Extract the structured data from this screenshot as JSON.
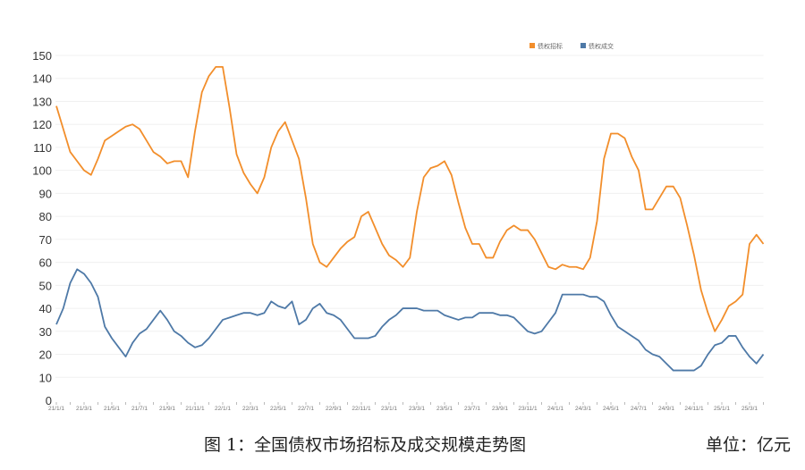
{
  "caption": {
    "title": "图 1：全国债权市场招标及成交规模走势图",
    "unit": "单位：亿元"
  },
  "chart_data": {
    "type": "line",
    "title": "",
    "xlabel": "",
    "ylabel": "",
    "ylim": [
      0,
      150
    ],
    "yticks": [
      0,
      10,
      20,
      30,
      40,
      50,
      60,
      70,
      80,
      90,
      100,
      110,
      120,
      130,
      140,
      150
    ],
    "xtick_labels": [
      "21/1/1",
      "21/3/1",
      "21/5/1",
      "21/7/1",
      "21/9/1",
      "21/11/1",
      "22/1/1",
      "22/3/1",
      "22/5/1",
      "22/7/1",
      "22/9/1",
      "22/11/1",
      "23/1/1",
      "23/3/1",
      "23/5/1",
      "23/7/1",
      "23/9/1",
      "23/11/1",
      "24/1/1",
      "24/3/1",
      "24/5/1",
      "24/7/1",
      "24/9/1",
      "24/11/1",
      "25/1/1",
      "25/3/1"
    ],
    "grid": true,
    "legend_position": "top-right",
    "x": [
      "21/1/1",
      "21/1/16",
      "21/2/1",
      "21/2/16",
      "21/3/1",
      "21/3/16",
      "21/4/1",
      "21/4/16",
      "21/5/1",
      "21/5/16",
      "21/6/1",
      "21/6/16",
      "21/7/1",
      "21/7/16",
      "21/8/1",
      "21/8/16",
      "21/9/1",
      "21/9/16",
      "21/10/1",
      "21/10/16",
      "21/11/1",
      "21/11/16",
      "21/12/1",
      "21/12/16",
      "22/1/1",
      "22/1/16",
      "22/2/1",
      "22/2/16",
      "22/3/1",
      "22/3/16",
      "22/4/1",
      "22/4/16",
      "22/5/1",
      "22/5/16",
      "22/6/1",
      "22/6/16",
      "22/7/1",
      "22/7/16",
      "22/8/1",
      "22/8/16",
      "22/9/1",
      "22/9/16",
      "22/10/1",
      "22/10/16",
      "22/11/1",
      "22/11/16",
      "22/12/1",
      "22/12/16",
      "23/1/1",
      "23/1/16",
      "23/2/1",
      "23/2/16",
      "23/3/1",
      "23/3/16",
      "23/4/1",
      "23/4/16",
      "23/5/1",
      "23/5/16",
      "23/6/1",
      "23/6/16",
      "23/7/1",
      "23/7/16",
      "23/8/1",
      "23/8/16",
      "23/9/1",
      "23/9/16",
      "23/10/1",
      "23/10/16",
      "23/11/1",
      "23/11/16",
      "23/12/1",
      "23/12/16",
      "24/1/1",
      "24/1/16",
      "24/2/1",
      "24/2/16",
      "24/3/1",
      "24/3/16",
      "24/4/1",
      "24/4/16",
      "24/5/1",
      "24/5/16",
      "24/6/1",
      "24/6/16",
      "24/7/1",
      "24/7/16",
      "24/8/1",
      "24/8/16",
      "24/9/1",
      "24/9/16",
      "24/10/1",
      "24/10/16",
      "24/11/1",
      "24/11/16",
      "24/12/1",
      "24/12/16",
      "25/1/1",
      "25/1/16",
      "25/2/1",
      "25/2/16",
      "25/3/1",
      "25/3/16",
      "25/4/1"
    ],
    "series": [
      {
        "name": "债权招标",
        "color": "#f28e2b",
        "values": [
          128,
          118,
          108,
          104,
          100,
          98,
          105,
          113,
          115,
          117,
          119,
          120,
          118,
          113,
          108,
          106,
          103,
          104,
          104,
          97,
          117,
          134,
          141,
          145,
          145,
          127,
          107,
          99,
          94,
          90,
          97,
          110,
          117,
          121,
          113,
          105,
          88,
          68,
          60,
          58,
          62,
          66,
          69,
          71,
          80,
          82,
          75,
          68,
          63,
          61,
          58,
          62,
          82,
          97,
          101,
          102,
          104,
          98,
          86,
          75,
          68,
          68,
          62,
          62,
          69,
          74,
          76,
          74,
          74,
          70,
          64,
          58,
          57,
          59,
          58,
          58,
          57,
          62,
          78,
          105,
          116,
          116,
          114,
          106,
          100,
          83,
          83,
          88,
          93,
          93,
          88,
          76,
          63,
          48,
          38,
          30,
          35,
          41,
          43,
          46,
          68,
          72,
          68
        ]
      },
      {
        "name": "债权成交",
        "color": "#4e79a7",
        "values": [
          33,
          40,
          51,
          57,
          55,
          51,
          45,
          32,
          27,
          23,
          19,
          25,
          29,
          31,
          35,
          39,
          35,
          30,
          28,
          25,
          23,
          24,
          27,
          31,
          35,
          36,
          37,
          38,
          38,
          37,
          38,
          43,
          41,
          40,
          43,
          33,
          35,
          40,
          42,
          38,
          37,
          35,
          31,
          27,
          27,
          27,
          28,
          32,
          35,
          37,
          40,
          40,
          40,
          39,
          39,
          39,
          37,
          36,
          35,
          36,
          36,
          38,
          38,
          38,
          37,
          37,
          36,
          33,
          30,
          29,
          30,
          34,
          38,
          46,
          46,
          46,
          46,
          45,
          45,
          43,
          37,
          32,
          30,
          28,
          26,
          22,
          20,
          19,
          16,
          13,
          13,
          13,
          13,
          15,
          20,
          24,
          25,
          28,
          28,
          23,
          19,
          16,
          20
        ]
      }
    ]
  }
}
